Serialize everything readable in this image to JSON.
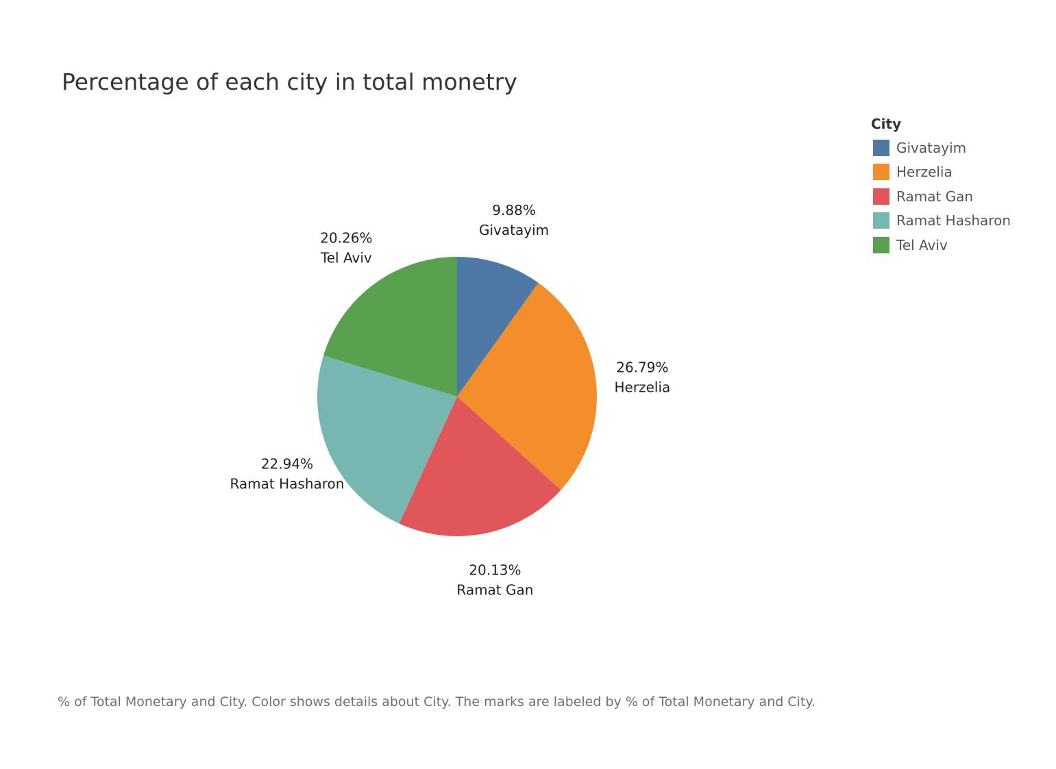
{
  "chart_data": {
    "type": "pie",
    "title": "Percentage of each city in total monetry",
    "legend_title": "City",
    "legend_position": "top-right",
    "slices": [
      {
        "category": "Givatayim",
        "value": 9.88,
        "label_value": "9.88%",
        "color": "#4e79a7"
      },
      {
        "category": "Herzelia",
        "value": 26.79,
        "label_value": "26.79%",
        "color": "#f28e2b"
      },
      {
        "category": "Ramat Gan",
        "value": 20.13,
        "label_value": "20.13%",
        "color": "#e15759"
      },
      {
        "category": "Ramat Hasharon",
        "value": 22.94,
        "label_value": "22.94%",
        "color": "#76b7b2"
      },
      {
        "category": "Tel Aviv",
        "value": 20.26,
        "label_value": "20.26%",
        "color": "#59a14f"
      }
    ],
    "caption": "% of Total Monetary and City.  Color shows details about City.  The marks are labeled by % of Total Monetary and City."
  }
}
